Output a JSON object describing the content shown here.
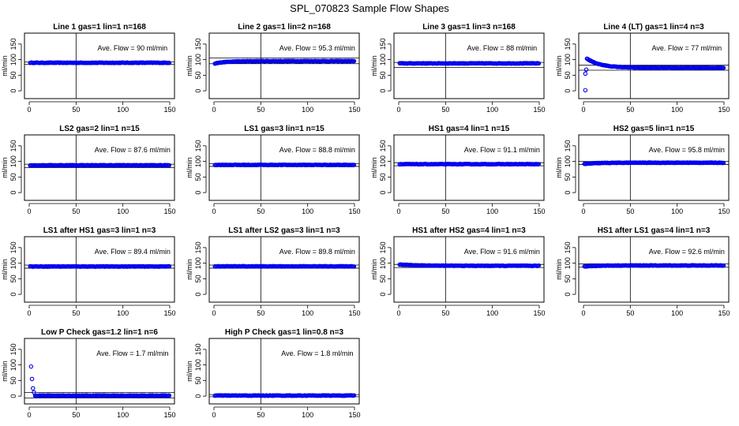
{
  "figure": {
    "title": "SPL_070823  Sample Flow Shapes",
    "point_color": "#0000ee"
  },
  "chart_data": [
    {
      "type": "scatter",
      "title": "Line 1 gas=1 lin=1 n=168",
      "xlabel": "",
      "ylabel": "ml/min",
      "xlim": [
        0,
        150
      ],
      "ylim": [
        -25,
        185
      ],
      "xticks": [
        0,
        50,
        100,
        150
      ],
      "yticks": [
        0,
        50,
        100,
        150
      ],
      "vline": 50,
      "hlines": [
        93,
        85
      ],
      "annotation": "Ave. Flow = 90  ml/min",
      "profile": {
        "kind": "flat",
        "level": 90
      }
    },
    {
      "type": "scatter",
      "title": "Line 2 gas=1 lin=2 n=168",
      "xlabel": "",
      "ylabel": "ml/min",
      "xlim": [
        0,
        150
      ],
      "ylim": [
        -25,
        185
      ],
      "xticks": [
        0,
        50,
        100,
        150
      ],
      "yticks": [
        0,
        50,
        100,
        150
      ],
      "vline": 50,
      "hlines": [
        105,
        87
      ],
      "annotation": "Ave. Flow = 95.3  ml/min",
      "profile": {
        "kind": "rise",
        "level": 95.3,
        "start": 87
      }
    },
    {
      "type": "scatter",
      "title": "Line 3 gas=1 lin=3 n=168",
      "xlabel": "",
      "ylabel": "ml/min",
      "xlim": [
        0,
        150
      ],
      "ylim": [
        -25,
        185
      ],
      "xticks": [
        0,
        50,
        100,
        150
      ],
      "yticks": [
        0,
        50,
        100,
        150
      ],
      "vline": 50,
      "hlines": [
        91,
        75
      ],
      "annotation": "Ave. Flow = 88  ml/min",
      "profile": {
        "kind": "flat",
        "level": 88
      }
    },
    {
      "type": "scatter",
      "title": "Line 4 (LT) gas=1 lin=4 n=3",
      "xlabel": "",
      "ylabel": "ml/min",
      "xlim": [
        0,
        150
      ],
      "ylim": [
        -25,
        185
      ],
      "xticks": [
        0,
        50,
        100,
        150
      ],
      "yticks": [
        0,
        50,
        100,
        150
      ],
      "vline": 50,
      "hlines": [
        82,
        66
      ],
      "annotation": "Ave. Flow = 77  ml/min",
      "profile": {
        "kind": "overshoot",
        "level": 74,
        "peak": 105,
        "outliers": [
          [
            2,
            55
          ],
          [
            2,
            2
          ],
          [
            3,
            68
          ]
        ]
      }
    },
    {
      "type": "scatter",
      "title": "LS2 gas=2 lin=1 n=15",
      "xlabel": "",
      "ylabel": "ml/min",
      "xlim": [
        0,
        150
      ],
      "ylim": [
        -25,
        185
      ],
      "xticks": [
        0,
        50,
        100,
        150
      ],
      "yticks": [
        0,
        50,
        100,
        150
      ],
      "vline": 50,
      "hlines": [
        91,
        80
      ],
      "annotation": "Ave. Flow = 87.6  ml/min",
      "profile": {
        "kind": "flat",
        "level": 87.6
      }
    },
    {
      "type": "scatter",
      "title": "LS1 gas=3 lin=1 n=15",
      "xlabel": "",
      "ylabel": "ml/min",
      "xlim": [
        0,
        150
      ],
      "ylim": [
        -25,
        185
      ],
      "xticks": [
        0,
        50,
        100,
        150
      ],
      "yticks": [
        0,
        50,
        100,
        150
      ],
      "vline": 50,
      "hlines": [
        93,
        84
      ],
      "annotation": "Ave. Flow = 88.8  ml/min",
      "profile": {
        "kind": "flat",
        "level": 88.8
      }
    },
    {
      "type": "scatter",
      "title": "HS1 gas=4 lin=1 n=15",
      "xlabel": "",
      "ylabel": "ml/min",
      "xlim": [
        0,
        150
      ],
      "ylim": [
        -25,
        185
      ],
      "xticks": [
        0,
        50,
        100,
        150
      ],
      "yticks": [
        0,
        50,
        100,
        150
      ],
      "vline": 50,
      "hlines": [
        96,
        86
      ],
      "annotation": "Ave. Flow = 91.1  ml/min",
      "profile": {
        "kind": "flat",
        "level": 91.1
      }
    },
    {
      "type": "scatter",
      "title": "HS2 gas=5 lin=1 n=15",
      "xlabel": "",
      "ylabel": "ml/min",
      "xlim": [
        0,
        150
      ],
      "ylim": [
        -25,
        185
      ],
      "xticks": [
        0,
        50,
        100,
        150
      ],
      "yticks": [
        0,
        50,
        100,
        150
      ],
      "vline": 50,
      "hlines": [
        100,
        90
      ],
      "annotation": "Ave. Flow = 95.8  ml/min",
      "profile": {
        "kind": "rise",
        "level": 95.8,
        "start": 91
      }
    },
    {
      "type": "scatter",
      "title": "LS1 after HS1 gas=3 lin=1 n=3",
      "xlabel": "",
      "ylabel": "ml/min",
      "xlim": [
        0,
        150
      ],
      "ylim": [
        -25,
        185
      ],
      "xticks": [
        0,
        50,
        100,
        150
      ],
      "yticks": [
        0,
        50,
        100,
        150
      ],
      "vline": 50,
      "hlines": [
        94,
        84
      ],
      "annotation": "Ave. Flow = 89.4  ml/min",
      "profile": {
        "kind": "flat",
        "level": 89.4
      }
    },
    {
      "type": "scatter",
      "title": "LS1 after LS2 gas=3 lin=1 n=3",
      "xlabel": "",
      "ylabel": "ml/min",
      "xlim": [
        0,
        150
      ],
      "ylim": [
        -25,
        185
      ],
      "xticks": [
        0,
        50,
        100,
        150
      ],
      "yticks": [
        0,
        50,
        100,
        150
      ],
      "vline": 50,
      "hlines": [
        94,
        84
      ],
      "annotation": "Ave. Flow = 89.8  ml/min",
      "profile": {
        "kind": "flat",
        "level": 89.8
      }
    },
    {
      "type": "scatter",
      "title": "HS1 after HS2 gas=4 lin=1 n=3",
      "xlabel": "",
      "ylabel": "ml/min",
      "xlim": [
        0,
        150
      ],
      "ylim": [
        -25,
        185
      ],
      "xticks": [
        0,
        50,
        100,
        150
      ],
      "yticks": [
        0,
        50,
        100,
        150
      ],
      "vline": 50,
      "hlines": [
        96,
        86
      ],
      "annotation": "Ave. Flow = 91.6  ml/min",
      "profile": {
        "kind": "decay",
        "level": 91.6,
        "start": 96
      }
    },
    {
      "type": "scatter",
      "title": "HS1 after LS1 gas=4 lin=1 n=3",
      "xlabel": "",
      "ylabel": "ml/min",
      "xlim": [
        0,
        150
      ],
      "ylim": [
        -25,
        185
      ],
      "xticks": [
        0,
        50,
        100,
        150
      ],
      "yticks": [
        0,
        50,
        100,
        150
      ],
      "vline": 50,
      "hlines": [
        98,
        87
      ],
      "annotation": "Ave. Flow = 92.6  ml/min",
      "profile": {
        "kind": "rise",
        "level": 92.6,
        "start": 89
      }
    },
    {
      "type": "scatter",
      "title": "Low P Check gas=1.2 lin=1 n=6",
      "xlabel": "",
      "ylabel": "ml/min",
      "xlim": [
        0,
        150
      ],
      "ylim": [
        -25,
        185
      ],
      "xticks": [
        0,
        50,
        100,
        150
      ],
      "yticks": [
        0,
        50,
        100,
        150
      ],
      "vline": 50,
      "hlines": [
        12,
        -6
      ],
      "annotation": "Ave. Flow = 1.7  ml/min",
      "profile": {
        "kind": "spike",
        "level": 1.7,
        "outliers": [
          [
            2,
            95
          ],
          [
            3,
            55
          ],
          [
            4,
            25
          ],
          [
            5,
            12
          ]
        ]
      }
    },
    {
      "type": "scatter",
      "title": "High P Check gas=1 lin=0.8 n=3",
      "xlabel": "",
      "ylabel": "ml/min",
      "xlim": [
        0,
        150
      ],
      "ylim": [
        -25,
        185
      ],
      "xticks": [
        0,
        50,
        100,
        150
      ],
      "yticks": [
        0,
        50,
        100,
        150
      ],
      "vline": 50,
      "hlines": [
        5,
        -2
      ],
      "annotation": "Ave. Flow = 1.8  ml/min",
      "profile": {
        "kind": "flat",
        "level": 1.8
      }
    }
  ]
}
